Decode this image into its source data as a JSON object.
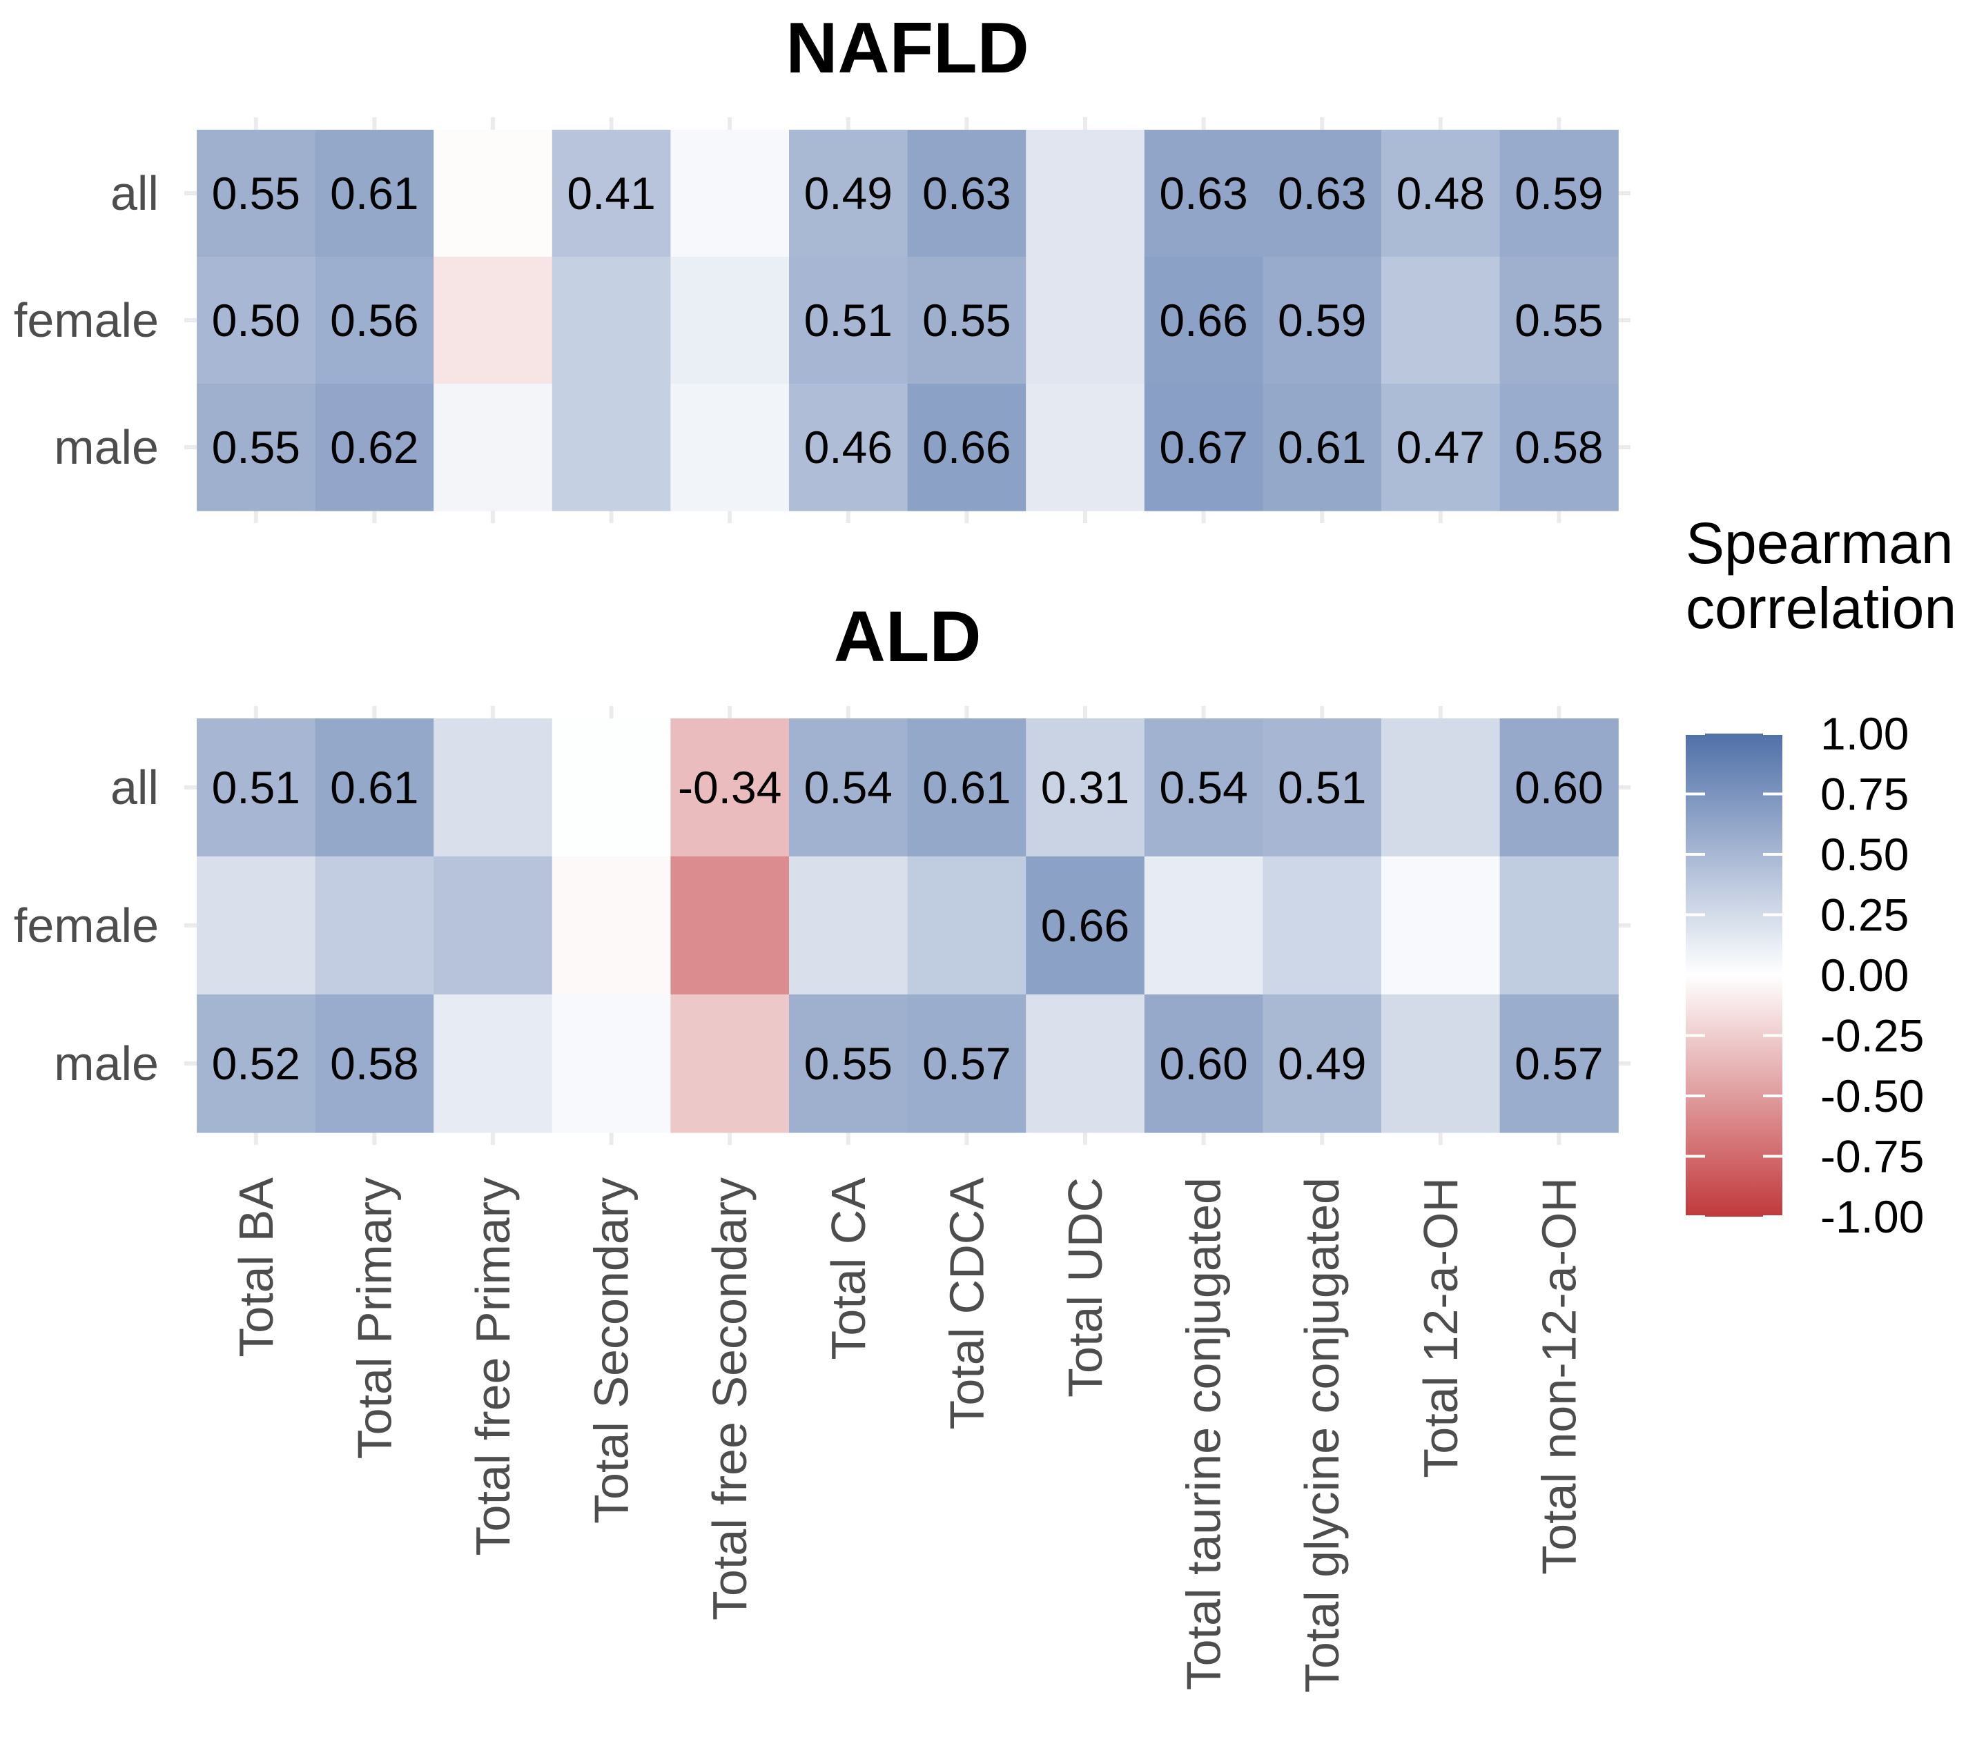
{
  "chart_data": {
    "type": "heatmap",
    "columns": [
      "Total BA",
      "Total Primary",
      "Total free Primary",
      "Total Secondary",
      "Total free Secondary",
      "Total CA",
      "Total CDCA",
      "Total UDC",
      "Total taurine conjugated",
      "Total glycine conjugated",
      "Total 12-a-OH",
      "Total non-12-a-OH"
    ],
    "rows": [
      "all",
      "female",
      "male"
    ],
    "panels": [
      {
        "title": "NAFLD",
        "values": [
          [
            0.55,
            0.61,
            -0.02,
            0.41,
            0.05,
            0.49,
            0.63,
            0.18,
            0.63,
            0.63,
            0.48,
            0.59
          ],
          [
            0.5,
            0.56,
            -0.13,
            0.33,
            0.12,
            0.51,
            0.55,
            0.18,
            0.66,
            0.59,
            0.39,
            0.55
          ],
          [
            0.55,
            0.62,
            0.07,
            0.33,
            0.08,
            0.46,
            0.66,
            0.15,
            0.67,
            0.61,
            0.47,
            0.58
          ]
        ],
        "labels": [
          [
            "0.55",
            "0.61",
            "",
            "0.41",
            "",
            "0.49",
            "0.63",
            "",
            "0.63",
            "0.63",
            "0.48",
            "0.59"
          ],
          [
            "0.50",
            "0.56",
            "",
            "",
            "",
            "0.51",
            "0.55",
            "",
            "0.66",
            "0.59",
            "",
            "0.55"
          ],
          [
            "0.55",
            "0.62",
            "",
            "",
            "",
            "0.46",
            "0.66",
            "",
            "0.67",
            "0.61",
            "0.47",
            "0.58"
          ]
        ]
      },
      {
        "title": "ALD",
        "values": [
          [
            0.51,
            0.61,
            0.22,
            0.01,
            -0.34,
            0.54,
            0.61,
            0.31,
            0.54,
            0.51,
            0.25,
            0.6
          ],
          [
            0.22,
            0.35,
            0.42,
            -0.03,
            -0.58,
            0.22,
            0.36,
            0.66,
            0.14,
            0.28,
            0.04,
            0.36
          ],
          [
            0.52,
            0.58,
            0.14,
            0.04,
            -0.28,
            0.55,
            0.57,
            0.21,
            0.6,
            0.49,
            0.25,
            0.57
          ]
        ],
        "labels": [
          [
            "0.51",
            "0.61",
            "",
            "",
            "-0.34",
            "0.54",
            "0.61",
            "0.31",
            "0.54",
            "0.51",
            "",
            "0.60"
          ],
          [
            "",
            "",
            "",
            "",
            "",
            "",
            "",
            "0.66",
            "",
            "",
            "",
            ""
          ],
          [
            "0.52",
            "0.58",
            "",
            "",
            "",
            "0.55",
            "0.57",
            "",
            "0.60",
            "0.49",
            "",
            "0.57"
          ]
        ]
      }
    ],
    "legend": {
      "title_line1": "Spearman",
      "title_line2": "correlation",
      "ticks": [
        "1.00",
        "0.75",
        "0.50",
        "0.25",
        "0.00",
        "-0.25",
        "-0.50",
        "-0.75",
        "-1.00"
      ],
      "range": [
        -1,
        1
      ],
      "placement": "right"
    },
    "colors": {
      "low": "#c0393c",
      "mid": "#ffffff",
      "high": "#5070a8"
    }
  }
}
